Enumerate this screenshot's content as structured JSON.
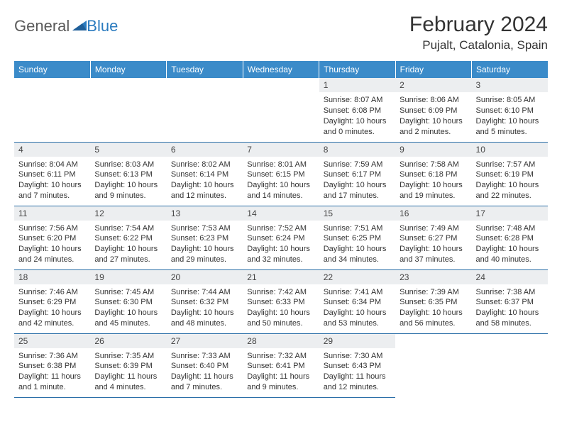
{
  "brand": {
    "part1": "General",
    "part2": "Blue"
  },
  "title": "February 2024",
  "location": "Pujalt, Catalonia, Spain",
  "colors": {
    "header_bg": "#3b8bc9",
    "header_text": "#ffffff",
    "daynum_bg": "#eceef0",
    "row_border": "#2b6fa8",
    "logo_gray": "#5a5a5a",
    "logo_blue": "#2b7bbf"
  },
  "day_labels": [
    "Sunday",
    "Monday",
    "Tuesday",
    "Wednesday",
    "Thursday",
    "Friday",
    "Saturday"
  ],
  "weeks": [
    [
      null,
      null,
      null,
      null,
      {
        "n": "1",
        "sr": "8:07 AM",
        "ss": "6:08 PM",
        "dl": "10 hours and 0 minutes."
      },
      {
        "n": "2",
        "sr": "8:06 AM",
        "ss": "6:09 PM",
        "dl": "10 hours and 2 minutes."
      },
      {
        "n": "3",
        "sr": "8:05 AM",
        "ss": "6:10 PM",
        "dl": "10 hours and 5 minutes."
      }
    ],
    [
      {
        "n": "4",
        "sr": "8:04 AM",
        "ss": "6:11 PM",
        "dl": "10 hours and 7 minutes."
      },
      {
        "n": "5",
        "sr": "8:03 AM",
        "ss": "6:13 PM",
        "dl": "10 hours and 9 minutes."
      },
      {
        "n": "6",
        "sr": "8:02 AM",
        "ss": "6:14 PM",
        "dl": "10 hours and 12 minutes."
      },
      {
        "n": "7",
        "sr": "8:01 AM",
        "ss": "6:15 PM",
        "dl": "10 hours and 14 minutes."
      },
      {
        "n": "8",
        "sr": "7:59 AM",
        "ss": "6:17 PM",
        "dl": "10 hours and 17 minutes."
      },
      {
        "n": "9",
        "sr": "7:58 AM",
        "ss": "6:18 PM",
        "dl": "10 hours and 19 minutes."
      },
      {
        "n": "10",
        "sr": "7:57 AM",
        "ss": "6:19 PM",
        "dl": "10 hours and 22 minutes."
      }
    ],
    [
      {
        "n": "11",
        "sr": "7:56 AM",
        "ss": "6:20 PM",
        "dl": "10 hours and 24 minutes."
      },
      {
        "n": "12",
        "sr": "7:54 AM",
        "ss": "6:22 PM",
        "dl": "10 hours and 27 minutes."
      },
      {
        "n": "13",
        "sr": "7:53 AM",
        "ss": "6:23 PM",
        "dl": "10 hours and 29 minutes."
      },
      {
        "n": "14",
        "sr": "7:52 AM",
        "ss": "6:24 PM",
        "dl": "10 hours and 32 minutes."
      },
      {
        "n": "15",
        "sr": "7:51 AM",
        "ss": "6:25 PM",
        "dl": "10 hours and 34 minutes."
      },
      {
        "n": "16",
        "sr": "7:49 AM",
        "ss": "6:27 PM",
        "dl": "10 hours and 37 minutes."
      },
      {
        "n": "17",
        "sr": "7:48 AM",
        "ss": "6:28 PM",
        "dl": "10 hours and 40 minutes."
      }
    ],
    [
      {
        "n": "18",
        "sr": "7:46 AM",
        "ss": "6:29 PM",
        "dl": "10 hours and 42 minutes."
      },
      {
        "n": "19",
        "sr": "7:45 AM",
        "ss": "6:30 PM",
        "dl": "10 hours and 45 minutes."
      },
      {
        "n": "20",
        "sr": "7:44 AM",
        "ss": "6:32 PM",
        "dl": "10 hours and 48 minutes."
      },
      {
        "n": "21",
        "sr": "7:42 AM",
        "ss": "6:33 PM",
        "dl": "10 hours and 50 minutes."
      },
      {
        "n": "22",
        "sr": "7:41 AM",
        "ss": "6:34 PM",
        "dl": "10 hours and 53 minutes."
      },
      {
        "n": "23",
        "sr": "7:39 AM",
        "ss": "6:35 PM",
        "dl": "10 hours and 56 minutes."
      },
      {
        "n": "24",
        "sr": "7:38 AM",
        "ss": "6:37 PM",
        "dl": "10 hours and 58 minutes."
      }
    ],
    [
      {
        "n": "25",
        "sr": "7:36 AM",
        "ss": "6:38 PM",
        "dl": "11 hours and 1 minute."
      },
      {
        "n": "26",
        "sr": "7:35 AM",
        "ss": "6:39 PM",
        "dl": "11 hours and 4 minutes."
      },
      {
        "n": "27",
        "sr": "7:33 AM",
        "ss": "6:40 PM",
        "dl": "11 hours and 7 minutes."
      },
      {
        "n": "28",
        "sr": "7:32 AM",
        "ss": "6:41 PM",
        "dl": "11 hours and 9 minutes."
      },
      {
        "n": "29",
        "sr": "7:30 AM",
        "ss": "6:43 PM",
        "dl": "11 hours and 12 minutes."
      },
      null,
      null
    ]
  ],
  "labels": {
    "sunrise": "Sunrise:",
    "sunset": "Sunset:",
    "daylight": "Daylight:"
  }
}
